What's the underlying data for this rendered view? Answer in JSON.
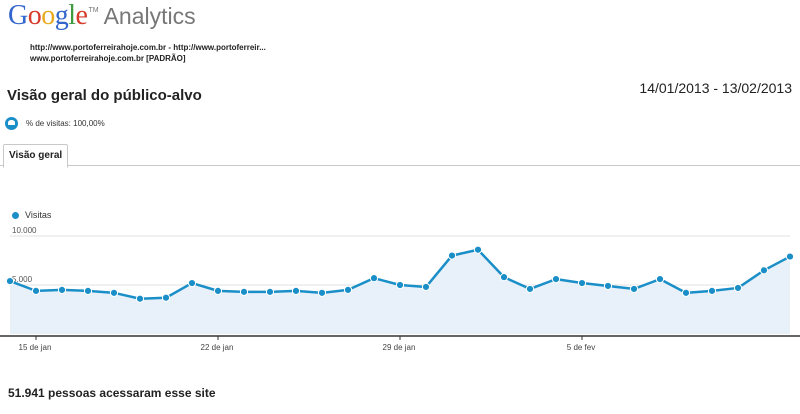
{
  "header": {
    "logo_google_letters": [
      "G",
      "o",
      "o",
      "g",
      "l",
      "e"
    ],
    "logo_google_colors": [
      "#3366cc",
      "#d63b2b",
      "#e8a91c",
      "#3366cc",
      "#3f9b3f",
      "#d63b2b"
    ],
    "logo_tm": "TM",
    "logo_analytics": "Analytics",
    "url_line_1": "http://www.portoferreirahoje.com.br - http://www.portoferreir...",
    "url_line_2": "www.portoferreirahoje.com.br [PADRÃO]"
  },
  "report": {
    "title": "Visão geral do público-alvo",
    "date_range": "14/01/2013 - 13/02/2013",
    "segment_label": "% de visitas: 100,00%",
    "tab_label": "Visão geral",
    "footer_text": "51.941 pessoas acessaram esse site"
  },
  "colors": {
    "accent": "#1a8fc7",
    "area_fill": "#e8f1fa",
    "gridline": "#e2e2e2"
  },
  "chart_data": {
    "type": "line",
    "series": [
      {
        "name": "Visitas",
        "values": [
          5400,
          4400,
          4500,
          4400,
          4200,
          3600,
          3700,
          5200,
          4400,
          4300,
          4300,
          4400,
          4200,
          4500,
          5700,
          5000,
          4800,
          8000,
          8600,
          5800,
          4600,
          5600,
          5200,
          4900,
          4600,
          5600,
          4200,
          4400,
          4700,
          6500,
          7900
        ]
      }
    ],
    "ylim": [
      0,
      10000
    ],
    "yticks": [
      5000,
      10000
    ],
    "ytick_labels": [
      "5.000",
      "10.000"
    ],
    "xtick_labels": [
      "15 de jan",
      "22 de jan",
      "29 de jan",
      "5 de fev"
    ],
    "xtick_indices": [
      1,
      8,
      15,
      22
    ],
    "legend": "top-left",
    "grid": true
  }
}
